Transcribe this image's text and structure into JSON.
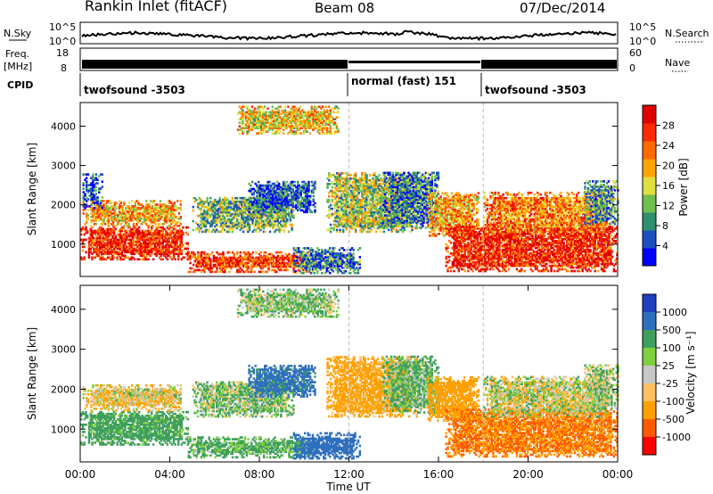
{
  "header": {
    "station": "Rankin Inlet (fitACF)",
    "beam": "Beam 08",
    "date": "07/Dec/2014"
  },
  "strip": {
    "nsky_label": "N.Sky",
    "nsky_top": "10^5",
    "nsky_bot": "10^0",
    "nsearch_label": "N.Search",
    "freq_label_1": "Freq.",
    "freq_label_2": "[MHz]",
    "freq_top": "18",
    "freq_bot": "8",
    "nave_top": "60",
    "nave_bot": "0",
    "nave_label": "Nave",
    "cpid_label": "CPID",
    "cpid_segments": [
      {
        "name": "twofsound -3503",
        "start_h": 0,
        "end_h": 12
      },
      {
        "name": "normal (fast) 151",
        "start_h": 12,
        "end_h": 18
      },
      {
        "name": "twofsound -3503",
        "start_h": 18,
        "end_h": 24
      }
    ]
  },
  "colors": {
    "power_scale": [
      "#0000ff",
      "#1f4fbf",
      "#2f8f6f",
      "#6fbf4f",
      "#dfdf3f",
      "#ffa500",
      "#ff6a00",
      "#ff2a00",
      "#e00000"
    ],
    "velocity_scale": [
      "#ff0000",
      "#ff5a00",
      "#ffa000",
      "#ffc060",
      "#c8c8c8",
      "#7fcf3f",
      "#3f9f5f",
      "#2f6fbf",
      "#1f3fbf"
    ],
    "ground_scatter": "#c0c0c0"
  },
  "chart_data": [
    {
      "type": "heatmap",
      "name": "power_panel",
      "ylabel": "Slant Range [km]",
      "xlim": [
        0,
        24
      ],
      "ylim": [
        180,
        4600
      ],
      "yticks": [
        "1000",
        "2000",
        "3000",
        "4000"
      ],
      "colorbar": {
        "label": "Power [dB]",
        "range": [
          0,
          32
        ],
        "ticks": [
          "4",
          "8",
          "12",
          "16",
          "20",
          "24",
          "28"
        ]
      },
      "regions": [
        {
          "t0": 0.0,
          "t1": 4.8,
          "r0": 600,
          "r1": 1450,
          "value": 28
        },
        {
          "t0": 0.1,
          "t1": 4.5,
          "r0": 1450,
          "r1": 2100,
          "value": 20
        },
        {
          "t0": 0.1,
          "t1": 1.0,
          "r0": 1900,
          "r1": 2800,
          "value": 6
        },
        {
          "t0": 4.8,
          "t1": 10.5,
          "r0": 280,
          "r1": 800,
          "value": 26
        },
        {
          "t0": 5.0,
          "t1": 9.5,
          "r0": 1300,
          "r1": 2200,
          "value": 12
        },
        {
          "t0": 7.5,
          "t1": 10.5,
          "r0": 1800,
          "r1": 2600,
          "value": 6
        },
        {
          "t0": 9.5,
          "t1": 12.5,
          "r0": 250,
          "r1": 900,
          "value": 8
        },
        {
          "t0": 11.0,
          "t1": 15.0,
          "r0": 1300,
          "r1": 2800,
          "value": 14
        },
        {
          "t0": 13.5,
          "t1": 16.0,
          "r0": 1400,
          "r1": 2800,
          "value": 8
        },
        {
          "t0": 15.5,
          "t1": 17.8,
          "r0": 1200,
          "r1": 2300,
          "value": 20
        },
        {
          "t0": 16.3,
          "t1": 24.0,
          "r0": 300,
          "r1": 1500,
          "value": 28
        },
        {
          "t0": 18.0,
          "t1": 23.5,
          "r0": 1300,
          "r1": 2300,
          "value": 22
        },
        {
          "t0": 22.5,
          "t1": 24.0,
          "r0": 1500,
          "r1": 2600,
          "value": 10
        },
        {
          "t0": 7.0,
          "t1": 11.5,
          "r0": 3800,
          "r1": 4500,
          "value": 18
        }
      ]
    },
    {
      "type": "heatmap",
      "name": "velocity_panel",
      "ylabel": "Slant Range [km]",
      "xlabel": "Time UT",
      "xlim": [
        0,
        24
      ],
      "ylim": [
        180,
        4600
      ],
      "xticks": [
        "00:00",
        "04:00",
        "08:00",
        "12:00",
        "16:00",
        "20:00",
        "00:00"
      ],
      "yticks": [
        "1000",
        "2000",
        "3000",
        "4000"
      ],
      "colorbar": {
        "label": "Velocity [m s⁻¹]",
        "ticks": [
          "1000",
          "500",
          "100",
          "25",
          "-25",
          "-100",
          "-500",
          "-1000"
        ]
      },
      "regions": [
        {
          "t0": 0.0,
          "t1": 4.8,
          "r0": 600,
          "r1": 1450,
          "value": 200
        },
        {
          "t0": 0.1,
          "t1": 4.5,
          "r0": 1450,
          "r1": 2100,
          "value": -80
        },
        {
          "t0": 1.5,
          "t1": 4.5,
          "r0": 1700,
          "r1": 2000,
          "value": 0
        },
        {
          "t0": 4.8,
          "t1": 10.5,
          "r0": 280,
          "r1": 800,
          "value": 150
        },
        {
          "t0": 5.0,
          "t1": 9.5,
          "r0": 1300,
          "r1": 2200,
          "value": 80
        },
        {
          "t0": 7.5,
          "t1": 10.5,
          "r0": 1800,
          "r1": 2600,
          "value": 600
        },
        {
          "t0": 9.5,
          "t1": 12.5,
          "r0": 250,
          "r1": 900,
          "value": 700
        },
        {
          "t0": 11.0,
          "t1": 15.0,
          "r0": 1300,
          "r1": 2800,
          "value": -200
        },
        {
          "t0": 13.5,
          "t1": 16.0,
          "r0": 1400,
          "r1": 2800,
          "value": 120
        },
        {
          "t0": 15.5,
          "t1": 17.8,
          "r0": 1200,
          "r1": 2300,
          "value": -300
        },
        {
          "t0": 16.3,
          "t1": 24.0,
          "r0": 300,
          "r1": 1500,
          "value": -500
        },
        {
          "t0": 18.0,
          "t1": 23.5,
          "r0": 1300,
          "r1": 2300,
          "value": 0
        },
        {
          "t0": 22.5,
          "t1": 24.0,
          "r0": 1500,
          "r1": 2600,
          "value": 60
        },
        {
          "t0": 7.0,
          "t1": 11.5,
          "r0": 3800,
          "r1": 4500,
          "value": 80
        }
      ]
    }
  ]
}
